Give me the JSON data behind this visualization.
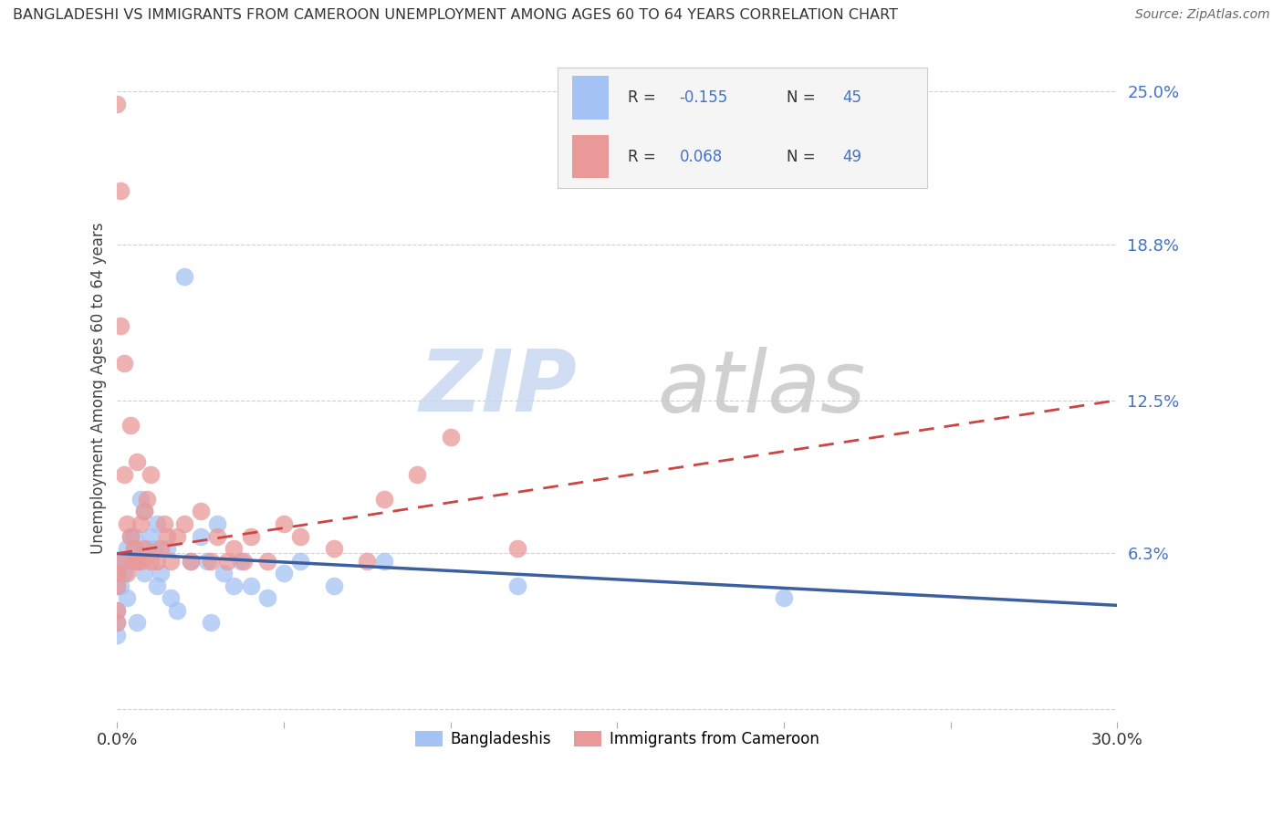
{
  "title": "BANGLADESHI VS IMMIGRANTS FROM CAMEROON UNEMPLOYMENT AMONG AGES 60 TO 64 YEARS CORRELATION CHART",
  "source": "Source: ZipAtlas.com",
  "ylabel": "Unemployment Among Ages 60 to 64 years",
  "xlim": [
    0.0,
    0.3
  ],
  "ylim": [
    -0.005,
    0.265
  ],
  "color_bangladeshi": "#a4c2f4",
  "color_cameroon": "#ea9999",
  "color_line_bangladeshi": "#3c5fa0",
  "color_line_cameroon": "#cc4444",
  "watermark_zip": "ZIP",
  "watermark_atlas": "atlas",
  "bangladeshi_x": [
    0.0,
    0.0,
    0.0,
    0.0,
    0.0,
    0.001,
    0.001,
    0.002,
    0.002,
    0.003,
    0.003,
    0.004,
    0.005,
    0.005,
    0.006,
    0.006,
    0.007,
    0.008,
    0.008,
    0.009,
    0.01,
    0.011,
    0.012,
    0.012,
    0.013,
    0.015,
    0.016,
    0.018,
    0.02,
    0.022,
    0.025,
    0.027,
    0.028,
    0.03,
    0.032,
    0.035,
    0.037,
    0.04,
    0.045,
    0.05,
    0.055,
    0.065,
    0.08,
    0.12,
    0.2
  ],
  "bangladeshi_y": [
    0.055,
    0.05,
    0.04,
    0.035,
    0.03,
    0.06,
    0.05,
    0.055,
    0.06,
    0.065,
    0.045,
    0.07,
    0.07,
    0.065,
    0.06,
    0.035,
    0.085,
    0.08,
    0.055,
    0.065,
    0.07,
    0.065,
    0.075,
    0.05,
    0.055,
    0.065,
    0.045,
    0.04,
    0.175,
    0.06,
    0.07,
    0.06,
    0.035,
    0.075,
    0.055,
    0.05,
    0.06,
    0.05,
    0.045,
    0.055,
    0.06,
    0.05,
    0.06,
    0.05,
    0.045
  ],
  "cameroon_x": [
    0.0,
    0.0,
    0.0,
    0.0,
    0.0,
    0.001,
    0.001,
    0.001,
    0.002,
    0.002,
    0.003,
    0.003,
    0.004,
    0.004,
    0.005,
    0.005,
    0.006,
    0.006,
    0.007,
    0.007,
    0.008,
    0.008,
    0.009,
    0.01,
    0.01,
    0.012,
    0.013,
    0.014,
    0.015,
    0.016,
    0.018,
    0.02,
    0.022,
    0.025,
    0.028,
    0.03,
    0.033,
    0.035,
    0.038,
    0.04,
    0.045,
    0.05,
    0.055,
    0.065,
    0.075,
    0.08,
    0.09,
    0.1,
    0.12
  ],
  "cameroon_y": [
    0.055,
    0.05,
    0.04,
    0.035,
    0.245,
    0.21,
    0.155,
    0.06,
    0.14,
    0.095,
    0.075,
    0.055,
    0.07,
    0.115,
    0.06,
    0.065,
    0.06,
    0.1,
    0.075,
    0.06,
    0.065,
    0.08,
    0.085,
    0.06,
    0.095,
    0.06,
    0.065,
    0.075,
    0.07,
    0.06,
    0.07,
    0.075,
    0.06,
    0.08,
    0.06,
    0.07,
    0.06,
    0.065,
    0.06,
    0.07,
    0.06,
    0.075,
    0.07,
    0.065,
    0.06,
    0.085,
    0.095,
    0.11,
    0.065
  ],
  "trendline_blue_x0": 0.0,
  "trendline_blue_y0": 0.063,
  "trendline_blue_x1": 0.3,
  "trendline_blue_y1": 0.042,
  "trendline_pink_x0": 0.0,
  "trendline_pink_y0": 0.063,
  "trendline_pink_x1": 0.3,
  "trendline_pink_y1": 0.125
}
